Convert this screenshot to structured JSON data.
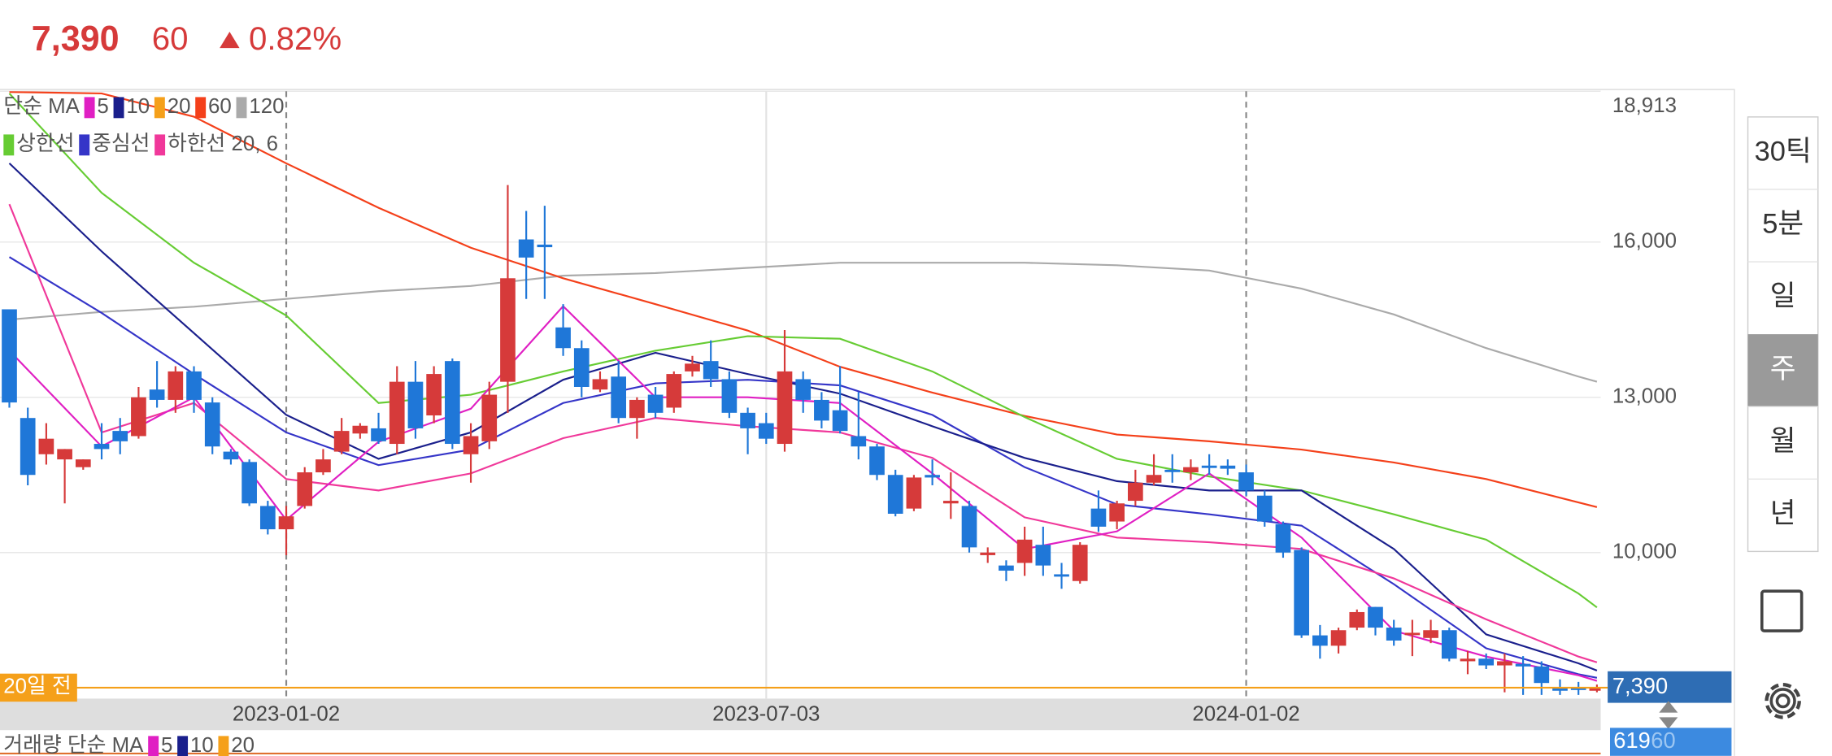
{
  "header": {
    "price": "7,390",
    "change": "60",
    "change_pct": "0.82%"
  },
  "chart_data": {
    "type": "candlestick",
    "categories": [
      null,
      null,
      null,
      null,
      null,
      null,
      null,
      null,
      null,
      null,
      null,
      null,
      null,
      null,
      null,
      "2023-01-02",
      null,
      null,
      null,
      null,
      null,
      null,
      null,
      null,
      null,
      null,
      null,
      null,
      null,
      null,
      null,
      null,
      null,
      null,
      null,
      null,
      null,
      null,
      null,
      null,
      null,
      "2023-07-03",
      null,
      null,
      null,
      null,
      null,
      null,
      null,
      null,
      null,
      null,
      null,
      null,
      null,
      null,
      null,
      null,
      null,
      null,
      null,
      null,
      null,
      null,
      null,
      null,
      null,
      "2024-01-02",
      null,
      null,
      null,
      null,
      null,
      null,
      null,
      null,
      null,
      null,
      null,
      null,
      null,
      null,
      null,
      null,
      null,
      null,
      null
    ],
    "open": [
      14700,
      12600,
      11900,
      11800,
      11650,
      12100,
      12350,
      12250,
      13150,
      12950,
      13500,
      12900,
      11950,
      11750,
      10900,
      10450,
      10900,
      11550,
      11950,
      12300,
      12400,
      12100,
      13300,
      12650,
      13700,
      11900,
      12150,
      13300,
      16050,
      15950,
      14350,
      13950,
      13150,
      13400,
      12600,
      13050,
      12800,
      13500,
      13700,
      13350,
      12700,
      12500,
      12100,
      13350,
      12950,
      12750,
      12250,
      12050,
      11500,
      10850,
      11500,
      10950,
      10900,
      9950,
      9750,
      9800,
      10150,
      9580,
      9450,
      10850,
      10600,
      11000,
      11350,
      11600,
      11550,
      11680,
      11680,
      11550,
      11100,
      10550,
      10050,
      8400,
      8200,
      8550,
      8950,
      8550,
      8420,
      8350,
      8500,
      7900,
      7950,
      7820,
      7850,
      7800,
      7400,
      7390,
      7330
    ],
    "high": [
      14700,
      12800,
      12500,
      12000,
      11800,
      12500,
      12600,
      13200,
      13700,
      13600,
      13600,
      13000,
      12000,
      11800,
      11000,
      10900,
      11650,
      12000,
      12600,
      12500,
      12700,
      13600,
      13700,
      13600,
      13750,
      12500,
      13300,
      17100,
      16600,
      16700,
      14800,
      14100,
      13500,
      13700,
      13000,
      13200,
      13500,
      13800,
      14100,
      13500,
      12800,
      12700,
      14300,
      13500,
      13100,
      13600,
      13100,
      12100,
      11600,
      11500,
      11800,
      11550,
      11000,
      10100,
      9850,
      10500,
      10500,
      9800,
      10200,
      11200,
      11000,
      11600,
      11900,
      11900,
      11800,
      11900,
      11800,
      11700,
      11200,
      10600,
      10100,
      8600,
      8550,
      8900,
      8950,
      8700,
      8700,
      8700,
      8550,
      8100,
      8050,
      8050,
      8000,
      7900,
      7550,
      7500,
      7450
    ],
    "low": [
      12800,
      11300,
      11700,
      10950,
      11600,
      11800,
      11900,
      12200,
      12800,
      12700,
      12700,
      11900,
      11700,
      10900,
      10350,
      9950,
      10850,
      11500,
      11900,
      12200,
      12100,
      11900,
      12200,
      12500,
      12000,
      11350,
      12000,
      12700,
      14900,
      14900,
      13800,
      13000,
      13100,
      12500,
      12200,
      12600,
      12700,
      13400,
      13200,
      12600,
      11900,
      12100,
      11950,
      12700,
      12400,
      12300,
      11800,
      11400,
      10700,
      10800,
      11300,
      10650,
      10000,
      9800,
      9450,
      9550,
      9550,
      9300,
      9400,
      10400,
      10450,
      10900,
      11300,
      11350,
      11400,
      11500,
      11500,
      11100,
      10500,
      9900,
      8350,
      7950,
      8050,
      8500,
      8400,
      8200,
      8000,
      8250,
      7900,
      7650,
      7750,
      7300,
      7250,
      7250,
      7250,
      7250,
      7300
    ],
    "close": [
      12900,
      11500,
      12200,
      12000,
      11800,
      12000,
      12150,
      13000,
      12950,
      13500,
      12950,
      12050,
      11800,
      10950,
      10450,
      10700,
      11550,
      11800,
      12350,
      12450,
      12150,
      13300,
      12400,
      13450,
      12100,
      12250,
      13050,
      15300,
      15700,
      15900,
      13950,
      13200,
      13350,
      12600,
      12950,
      12700,
      13450,
      13650,
      13350,
      12700,
      12400,
      12200,
      13500,
      12950,
      12550,
      12350,
      12050,
      11500,
      10750,
      11450,
      11450,
      11000,
      10100,
      10000,
      9650,
      10250,
      9750,
      9560,
      10150,
      10500,
      10950,
      11350,
      11500,
      11580,
      11650,
      11650,
      11620,
      11200,
      10600,
      10000,
      8400,
      8200,
      8500,
      8850,
      8550,
      8300,
      8450,
      8500,
      7950,
      7950,
      7820,
      7900,
      7800,
      7480,
      7330,
      7370,
      7390
    ],
    "up_color": "#d63a3a",
    "down_color": "#1f77d8",
    "ylim": [
      7178,
      18913
    ],
    "yticks": [
      {
        "value": 18913,
        "label": "18,913"
      },
      {
        "value": 16000,
        "label": "16,000"
      },
      {
        "value": 13000,
        "label": "13,000"
      },
      {
        "value": 10000,
        "label": "10,000"
      }
    ],
    "legend_rows": [
      {
        "label": "단순 MA",
        "items": [
          {
            "name": "5",
            "color": "#e01fc3"
          },
          {
            "name": "10",
            "color": "#1a1f8c"
          },
          {
            "name": "20",
            "color": "#f5a01a"
          },
          {
            "name": "60",
            "color": "#f4401a"
          },
          {
            "name": "120",
            "color": "#aaaaaa"
          }
        ]
      },
      {
        "items": [
          {
            "name": "상한선",
            "color": "#66cc33"
          },
          {
            "name": "중심선",
            "color": "#3535c8"
          },
          {
            "name": "하한선 20, 6",
            "color": "#f0389a"
          }
        ]
      }
    ],
    "lines": [
      {
        "color": "#aaaaaa",
        "x": [
          0,
          5,
          10,
          15,
          20,
          25,
          30,
          35,
          40,
          45,
          50,
          55,
          60,
          65,
          70,
          75,
          80,
          85,
          86
        ],
        "values": [
          14500,
          14650,
          14750,
          14900,
          15050,
          15150,
          15350,
          15400,
          15500,
          15600,
          15600,
          15600,
          15550,
          15450,
          15100,
          14600,
          13950,
          13400,
          13300
        ]
      },
      {
        "color": "#f4401a",
        "x": [
          0,
          5,
          10,
          15,
          20,
          25,
          30,
          35,
          40,
          45,
          50,
          55,
          60,
          65,
          70,
          75,
          80,
          85,
          86
        ],
        "values": [
          18900,
          18870,
          18420,
          17520,
          16660,
          15890,
          15300,
          14800,
          14290,
          13590,
          13090,
          12640,
          12280,
          12150,
          11990,
          11740,
          11420,
          10970,
          10880
        ]
      },
      {
        "color": "#66cc33",
        "x": [
          0,
          5,
          10,
          15,
          20,
          25,
          30,
          35,
          40,
          45,
          50,
          55,
          60,
          65,
          70,
          75,
          80,
          85,
          86
        ],
        "values": [
          18870,
          16950,
          15600,
          14580,
          12890,
          13050,
          13500,
          13900,
          14180,
          14130,
          13500,
          12620,
          11810,
          11470,
          11200,
          10740,
          10250,
          9210,
          8940
        ]
      },
      {
        "color": "#3535c8",
        "x": [
          0,
          5,
          10,
          15,
          20,
          25,
          30,
          35,
          40,
          45,
          50,
          55,
          60,
          65,
          70,
          75,
          80,
          85,
          86
        ],
        "values": [
          15710,
          14630,
          13450,
          12320,
          11690,
          11990,
          12890,
          13270,
          13340,
          13230,
          12660,
          11650,
          10930,
          10740,
          10520,
          9390,
          8150,
          7650,
          7580
        ]
      },
      {
        "color": "#1a1f8c",
        "x": [
          0,
          5,
          10,
          15,
          20,
          25,
          30,
          35,
          40,
          45,
          50,
          55,
          60,
          65,
          70,
          75,
          80,
          85,
          86
        ],
        "values": [
          17520,
          15820,
          14240,
          12660,
          11810,
          12320,
          13340,
          13860,
          13450,
          13070,
          12440,
          11830,
          11380,
          11200,
          11200,
          10070,
          8420,
          7860,
          7720
        ]
      },
      {
        "color": "#f0389a",
        "x": [
          0,
          5,
          10,
          15,
          20,
          25,
          30,
          35,
          40,
          45,
          50,
          55,
          60,
          65,
          70,
          75,
          80,
          85,
          86
        ],
        "values": [
          16730,
          12320,
          12890,
          11420,
          11200,
          11530,
          12210,
          12600,
          12440,
          12320,
          11830,
          10680,
          10290,
          10200,
          10070,
          9500,
          8710,
          7990,
          7880
        ]
      },
      {
        "color": "#e01fc3",
        "x": [
          0,
          5,
          10,
          15,
          20,
          25,
          30,
          35,
          40,
          45,
          50,
          55,
          60,
          65,
          70,
          75,
          80,
          85,
          86
        ],
        "values": [
          13900,
          12050,
          13000,
          10630,
          12140,
          12780,
          14760,
          13000,
          13000,
          12890,
          11530,
          10070,
          10410,
          11530,
          10290,
          8490,
          7990,
          7630,
          7520
        ]
      }
    ],
    "last_price": {
      "value": 7390,
      "label": "7,390",
      "tag": "20일 전",
      "color": "#f5a01a"
    }
  },
  "volume": {
    "label": "거래량 단순 MA",
    "legend": [
      {
        "name": "5",
        "color": "#e01fc3"
      },
      {
        "name": "10",
        "color": "#1a1f8c"
      },
      {
        "name": "20",
        "color": "#f5a01a"
      }
    ],
    "last": "619",
    "overlap": "60"
  },
  "periods": [
    "30틱",
    "5분",
    "일",
    "주",
    "월",
    "년"
  ],
  "selected_period": 3
}
